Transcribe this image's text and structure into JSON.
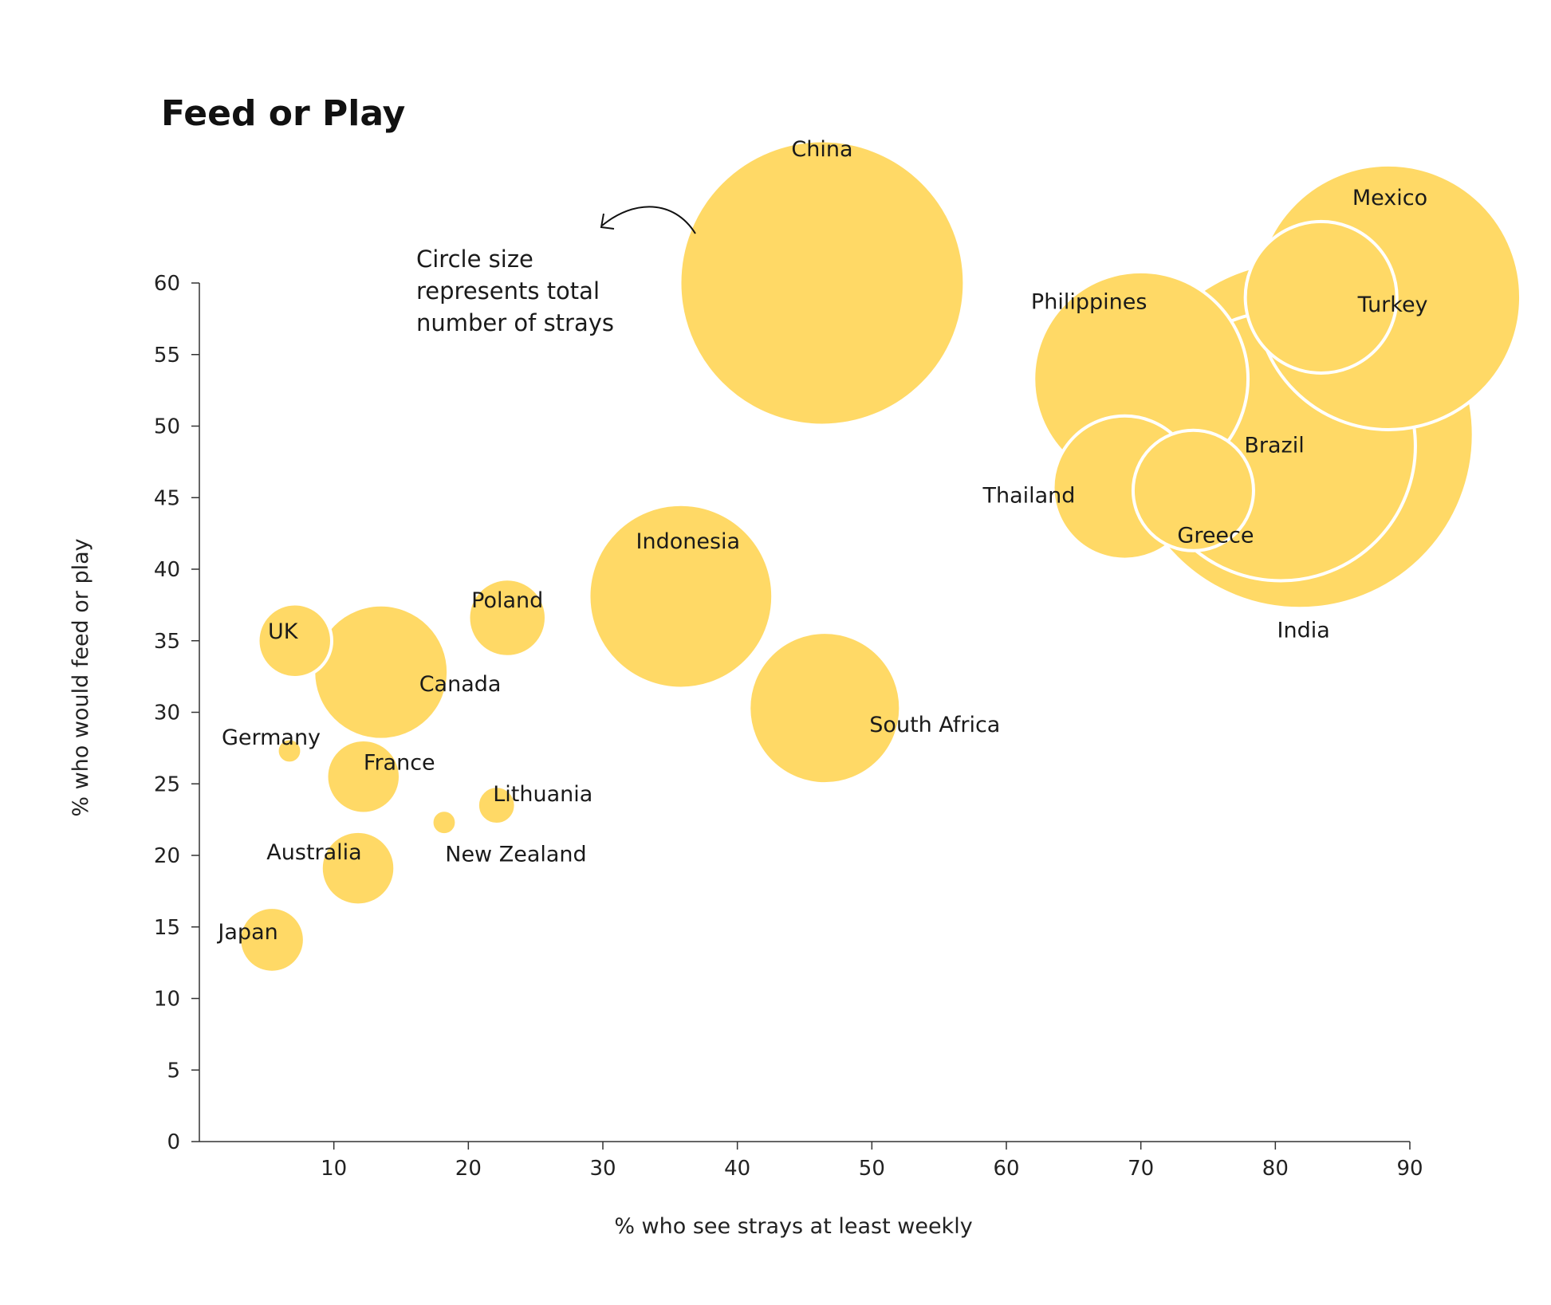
{
  "chart_data": {
    "type": "scatter",
    "title": "Feed or Play",
    "xlabel": "% who see strays at least weekly",
    "ylabel": "% who would feed or play",
    "xlim": [
      0,
      90
    ],
    "ylim": [
      0,
      60
    ],
    "xticks": [
      10,
      20,
      30,
      40,
      50,
      60,
      70,
      80,
      90
    ],
    "yticks": [
      0,
      5,
      10,
      15,
      20,
      25,
      30,
      35,
      40,
      45,
      50,
      55,
      60
    ],
    "grid": false,
    "color": "#FFD966",
    "annotation": {
      "lines": [
        "Circle size",
        "represents total",
        "number of strays"
      ]
    },
    "points": [
      {
        "label": "India",
        "x": 81.8,
        "y": 49.4,
        "size": 100
      },
      {
        "label": "China",
        "x": 46.3,
        "y": 60.0,
        "size": 67
      },
      {
        "label": "Mexico",
        "x": 88.4,
        "y": 59.0,
        "size": 58
      },
      {
        "label": "Brazil",
        "x": 80.4,
        "y": 48.6,
        "size": 60
      },
      {
        "label": "Philippines",
        "x": 70.0,
        "y": 53.3,
        "size": 38
      },
      {
        "label": "Turkey",
        "x": 83.4,
        "y": 59.0,
        "size": 19
      },
      {
        "label": "Indonesia",
        "x": 35.8,
        "y": 38.1,
        "size": 28
      },
      {
        "label": "Thailand",
        "x": 68.8,
        "y": 45.7,
        "size": 17
      },
      {
        "label": "Greece",
        "x": 73.9,
        "y": 45.5,
        "size": 12
      },
      {
        "label": "South Africa",
        "x": 46.5,
        "y": 30.3,
        "size": 19
      },
      {
        "label": "Canada",
        "x": 13.5,
        "y": 32.8,
        "size": 15
      },
      {
        "label": "Poland",
        "x": 22.9,
        "y": 36.6,
        "size": 5
      },
      {
        "label": "UK",
        "x": 7.1,
        "y": 35.0,
        "size": 4.5
      },
      {
        "label": "France",
        "x": 12.2,
        "y": 25.5,
        "size": 4.5
      },
      {
        "label": "Australia",
        "x": 11.8,
        "y": 19.1,
        "size": 4.5
      },
      {
        "label": "Japan",
        "x": 5.4,
        "y": 14.1,
        "size": 3.5
      },
      {
        "label": "Lithuania",
        "x": 22.1,
        "y": 23.5,
        "size": 1.2
      },
      {
        "label": "Germany",
        "x": 6.7,
        "y": 27.3,
        "size": 0.5
      },
      {
        "label": "New Zealand",
        "x": 18.2,
        "y": 22.3,
        "size": 0.5
      }
    ]
  }
}
